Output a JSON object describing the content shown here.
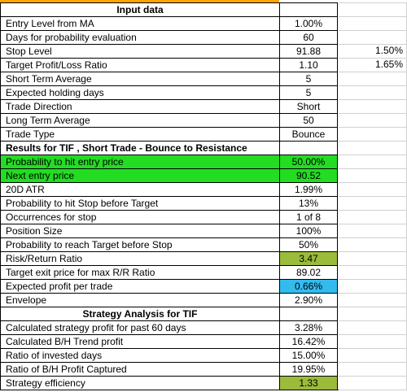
{
  "colors": {
    "green_highlight": "#22dd22",
    "olive_highlight": "#9bbb3b",
    "blue_highlight": "#33bbee",
    "header_bar": "#ffa500"
  },
  "rows": [
    {
      "label": "Input data",
      "value": "",
      "extra": "",
      "style": "header"
    },
    {
      "label": "Entry Level from MA",
      "value": "1.00%",
      "extra": ""
    },
    {
      "label": "Days for probability evaluation",
      "value": "60",
      "extra": ""
    },
    {
      "label": "Stop Level",
      "value": "91.88",
      "extra": "1.50%"
    },
    {
      "label": "Target Profit/Loss Ratio",
      "value": "1.10",
      "extra": "1.65%"
    },
    {
      "label": "Short Term Average",
      "value": "5",
      "extra": ""
    },
    {
      "label": "Expected holding days",
      "value": "5",
      "extra": ""
    },
    {
      "label": "Trade Direction",
      "value": "Short",
      "extra": ""
    },
    {
      "label": "Long Term Average",
      "value": "50",
      "extra": ""
    },
    {
      "label": "Trade Type",
      "value": "Bounce",
      "extra": ""
    },
    {
      "label": "Results for TIF , Short Trade - Bounce to Resistance",
      "value": "",
      "extra": "",
      "style": "header-left"
    },
    {
      "label": "Probability to hit entry price",
      "value": "50.00%",
      "extra": "",
      "style": "green"
    },
    {
      "label": "Next entry price",
      "value": "90.52",
      "extra": "",
      "style": "green"
    },
    {
      "label": "20D ATR",
      "value": "1.99%",
      "extra": ""
    },
    {
      "label": "Probability to hit Stop before Target",
      "value": "13%",
      "extra": ""
    },
    {
      "label": "Occurrences for stop",
      "value": "1 of 8",
      "extra": ""
    },
    {
      "label": "Position Size",
      "value": "100%",
      "extra": ""
    },
    {
      "label": "Probability to reach Target before Stop",
      "value": "50%",
      "extra": ""
    },
    {
      "label": "Risk/Return Ratio",
      "value": "3.47",
      "extra": "",
      "style": "olive-value"
    },
    {
      "label": "Target exit price for max R/R Ratio",
      "value": "89.02",
      "extra": ""
    },
    {
      "label": "Expected profit per trade",
      "value": "0.66%",
      "extra": "",
      "style": "blue-value"
    },
    {
      "label": "Envelope",
      "value": "2.90%",
      "extra": ""
    },
    {
      "label": "Strategy Analysis for TIF",
      "value": "",
      "extra": "",
      "style": "header"
    },
    {
      "label": "Calculated strategy profit for past 60 days",
      "value": "3.28%",
      "extra": ""
    },
    {
      "label": "Calculated B/H Trend profit",
      "value": "16.42%",
      "extra": ""
    },
    {
      "label": "Ratio of invested days",
      "value": "15.00%",
      "extra": ""
    },
    {
      "label": "Ratio of B/H Profit Captured",
      "value": "19.95%",
      "extra": ""
    },
    {
      "label": "Strategy efficiency",
      "value": "1.33",
      "extra": "",
      "style": "olive-value"
    }
  ]
}
